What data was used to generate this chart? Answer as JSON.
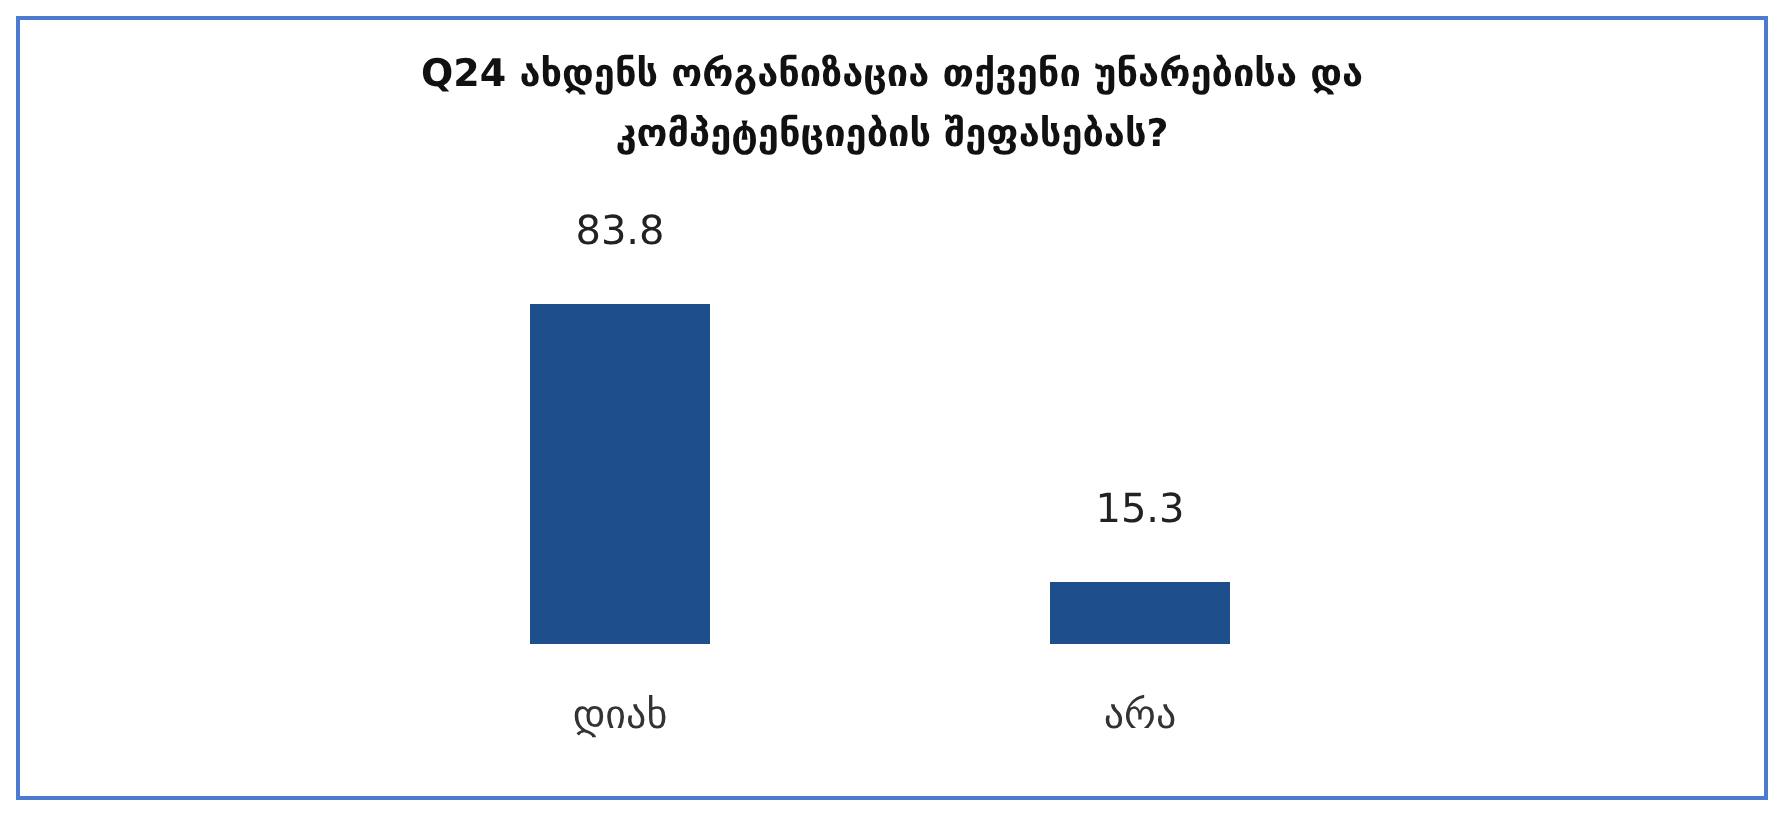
{
  "chart_data": {
    "type": "bar",
    "title": "Q24 ახდენს ორგანიზაცია თქვენი უნარებისა და კომპეტენციების შეფასებას?",
    "categories": [
      "დიახ",
      "არა"
    ],
    "values": [
      83.8,
      15.3
    ],
    "color": "#1f4e8c",
    "data_labels": true
  }
}
